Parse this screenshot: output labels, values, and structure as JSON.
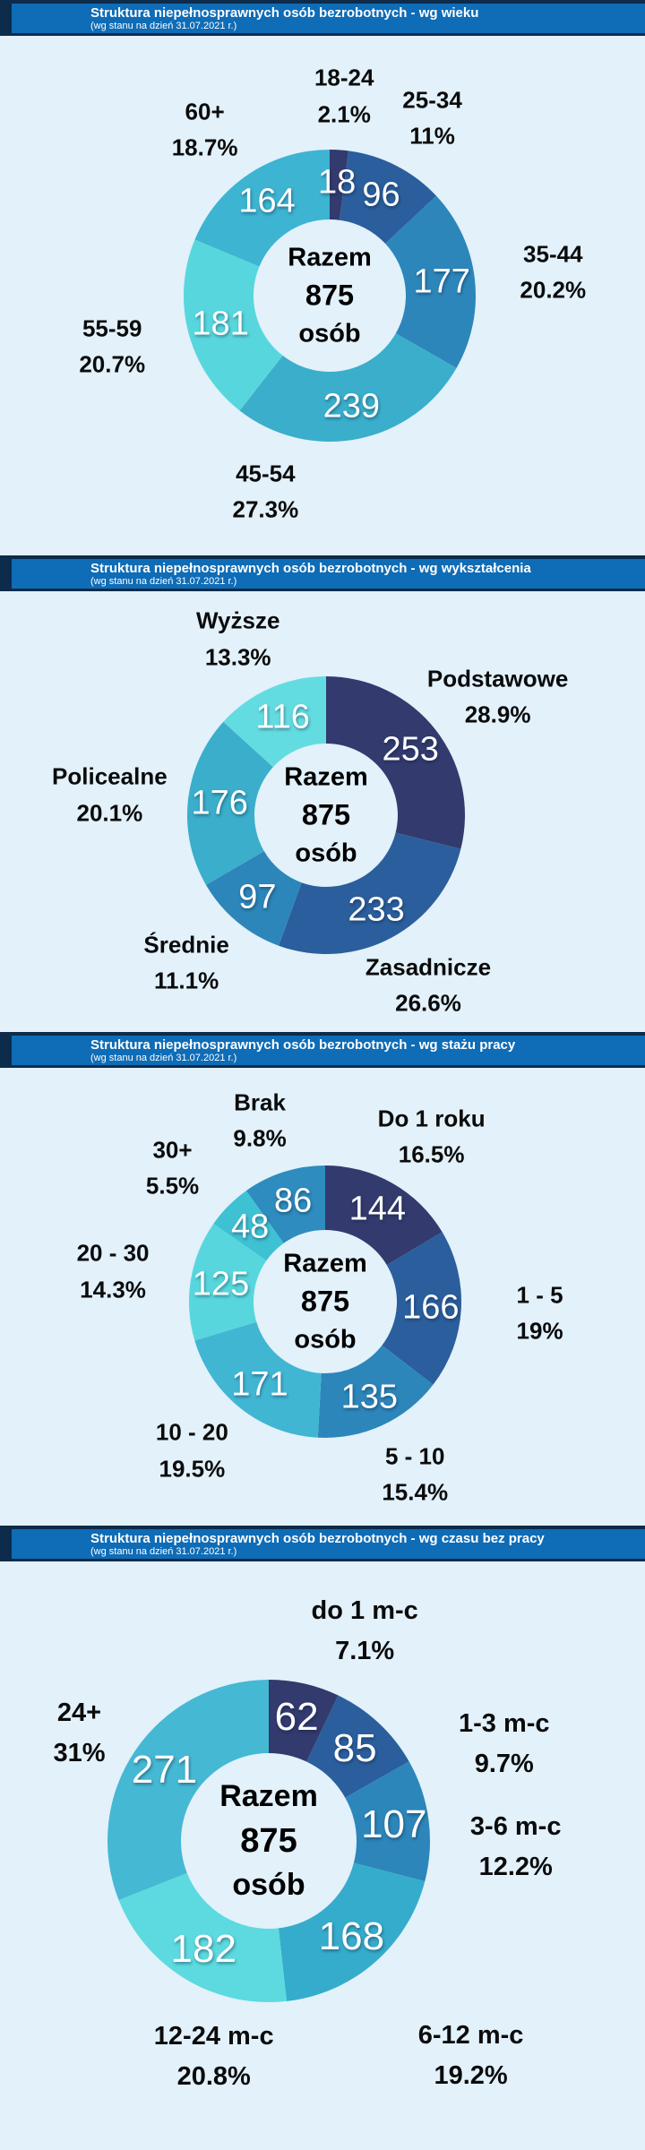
{
  "page_background": "#E2F1FA",
  "header_bar": {
    "background": "#0F6CB6",
    "accent": "#0D2B4A",
    "text_color": "#FFFFFF"
  },
  "donut_center": {
    "line1": "Razem",
    "line2": "875",
    "line3": "osób"
  },
  "chart_data": [
    {
      "type": "pie",
      "donut": true,
      "title": "Struktura niepełnosprawnych osób bezrobotnych - wg wieku",
      "subtitle": "(wg stanu na dzień 31.07.2021 r.)",
      "total": 875,
      "center_text": "Razem 875 osób",
      "slices": [
        {
          "label": "18-24",
          "value": 18,
          "pct": "2.1%",
          "color": "#333A6E"
        },
        {
          "label": "25-34",
          "value": 96,
          "pct": "11%",
          "color": "#2B5E9C"
        },
        {
          "label": "35-44",
          "value": 177,
          "pct": "20.2%",
          "color": "#2C86BA"
        },
        {
          "label": "45-54",
          "value": 239,
          "pct": "27.3%",
          "color": "#3AAECB"
        },
        {
          "label": "55-59",
          "value": 181,
          "pct": "20.7%",
          "color": "#57D7DD"
        },
        {
          "label": "60+",
          "value": 164,
          "pct": "18.7%",
          "color": "#3CB4D2"
        }
      ]
    },
    {
      "type": "pie",
      "donut": true,
      "title": "Struktura niepełnosprawnych osób bezrobotnych - wg wykształcenia",
      "subtitle": "(wg stanu na dzień 31.07.2021 r.)",
      "total": 875,
      "center_text": "Razem 875 osób",
      "slices": [
        {
          "label": "Podstawowe",
          "value": 253,
          "pct": "28.9%",
          "color": "#333A6E"
        },
        {
          "label": "Zasadnicze",
          "value": 233,
          "pct": "26.6%",
          "color": "#2B5E9C"
        },
        {
          "label": "Średnie",
          "value": 97,
          "pct": "11.1%",
          "color": "#2C86BA"
        },
        {
          "label": "Policealne",
          "value": 176,
          "pct": "20.1%",
          "color": "#3AAECB"
        },
        {
          "label": "Wyższe",
          "value": 116,
          "pct": "13.3%",
          "color": "#63DCE1"
        }
      ]
    },
    {
      "type": "pie",
      "donut": true,
      "title": "Struktura niepełnosprawnych osób bezrobotnych - wg stażu pracy",
      "subtitle": "(wg stanu na dzień 31.07.2021 r.)",
      "total": 875,
      "center_text": "Razem 875 osób",
      "slices": [
        {
          "label": "Do 1 roku",
          "value": 144,
          "pct": "16.5%",
          "color": "#333A6E"
        },
        {
          "label": "1 - 5",
          "value": 166,
          "pct": "19%",
          "color": "#2B5E9C"
        },
        {
          "label": "5 - 10",
          "value": 135,
          "pct": "15.4%",
          "color": "#2C86BA"
        },
        {
          "label": "10 - 20",
          "value": 171,
          "pct": "19.5%",
          "color": "#41B6D3"
        },
        {
          "label": "20 - 30",
          "value": 125,
          "pct": "14.3%",
          "color": "#57D7DD"
        },
        {
          "label": "30+",
          "value": 48,
          "pct": "5.5%",
          "color": "#3EC1D3"
        },
        {
          "label": "Brak",
          "value": 86,
          "pct": "9.8%",
          "color": "#2E8CBE"
        }
      ]
    },
    {
      "type": "pie",
      "donut": true,
      "title": "Struktura niepełnosprawnych osób bezrobotnych - wg czasu bez pracy",
      "subtitle": "(wg stanu na dzień 31.07.2021 r.)",
      "total": 875,
      "center_text": "Razem 875 osób",
      "slices": [
        {
          "label": "do 1 m-c",
          "value": 62,
          "pct": "7.1%",
          "color": "#333A6E"
        },
        {
          "label": "1-3 m-c",
          "value": 85,
          "pct": "9.7%",
          "color": "#2B5E9C"
        },
        {
          "label": "3-6 m-c",
          "value": 107,
          "pct": "12.2%",
          "color": "#2C86BA"
        },
        {
          "label": "6-12 m-c",
          "value": 168,
          "pct": "19.2%",
          "color": "#36ACCC"
        },
        {
          "label": "12-24 m-c",
          "value": 182,
          "pct": "20.8%",
          "color": "#5CDADF"
        },
        {
          "label": "24+",
          "value": 271,
          "pct": "31%",
          "color": "#45B8D3"
        }
      ]
    }
  ]
}
